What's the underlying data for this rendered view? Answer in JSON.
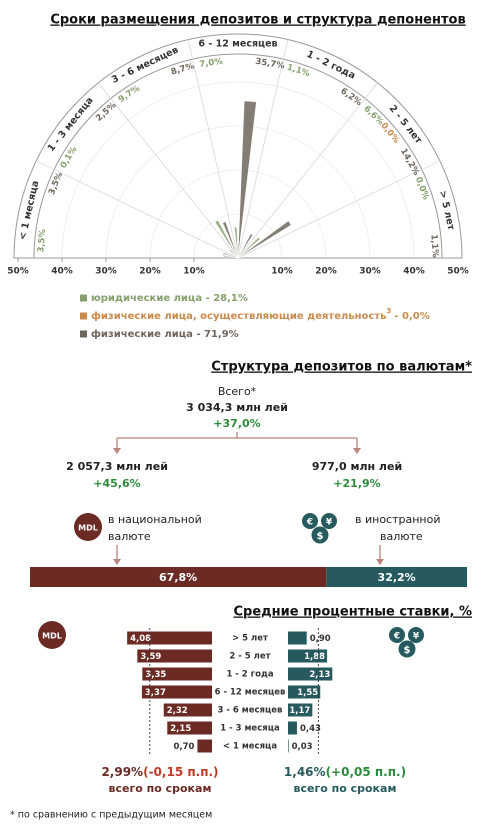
{
  "chart_data": [
    {
      "type": "radial",
      "title": "Сроки размещения депозитов и структура депонентов",
      "categories": [
        "< 1 месяца",
        "1 - 3 месяца",
        "3 - 6 месяцев",
        "6 - 12 месяцев",
        "1 - 2 года",
        "2 - 5 лет",
        "> 5 лет"
      ],
      "series": [
        {
          "name": "юридические лица - 28,1%",
          "color": "#86a06e",
          "values": [
            3.5,
            0.1,
            9.7,
            7.0,
            1.1,
            6.6,
            0.0
          ],
          "value_labels": [
            "3,5%",
            "0,1%",
            "9,7%",
            "7,0%",
            "1,1%",
            "6,6%",
            "0,0%"
          ]
        },
        {
          "name": "физические лица, осуществляющие деятельность",
          "name_note": "3",
          "name_suffix": "- 0,0%",
          "color": "#c98b4e",
          "values": [
            null,
            null,
            null,
            null,
            null,
            0.0,
            null
          ],
          "value_labels": [
            null,
            null,
            null,
            null,
            null,
            "0,0%",
            null
          ]
        },
        {
          "name": "физические лица - 71,9%",
          "color": "#6e665c",
          "values": [
            3.5,
            2.5,
            8.7,
            35.7,
            6.2,
            14.2,
            1.1
          ],
          "value_labels": [
            "3,5%",
            "2,5%",
            "8,7%",
            "35,7%",
            "6,2%",
            "14,2%",
            "1,1%"
          ]
        }
      ],
      "rlim": [
        0,
        50
      ],
      "rticks_left": [
        {
          "value": 50,
          "label": "50%"
        },
        {
          "value": 40,
          "label": "40%"
        },
        {
          "value": 30,
          "label": "30%"
        },
        {
          "value": 20,
          "label": "20%"
        },
        {
          "value": 10,
          "label": "10%"
        }
      ],
      "rticks_right": [
        {
          "value": 10,
          "label": "10%"
        },
        {
          "value": 20,
          "label": "20%"
        },
        {
          "value": 30,
          "label": "30%"
        },
        {
          "value": 40,
          "label": "40%"
        },
        {
          "value": 50,
          "label": "50%"
        }
      ]
    },
    {
      "type": "share_bar",
      "title": "Структура депозитов по валютам*",
      "series": [
        {
          "color": "#6b2a24",
          "values": [
            67.8
          ],
          "value_labels": [
            "67,8%"
          ]
        },
        {
          "color": "#275a5e",
          "values": [
            32.2
          ],
          "value_labels": [
            "32,2%"
          ]
        }
      ]
    },
    {
      "type": "diverging_bar",
      "title": "Средние процентные ставки, %",
      "categories": [
        "> 5 лет",
        "2 - 5 лет",
        "1 - 2 года",
        "6 - 12 месяцев",
        "3 - 6 месяцев",
        "1 - 3 месяца",
        "< 1 месяца"
      ],
      "series": [
        {
          "color": "#6b2a24",
          "values": [
            4.08,
            3.59,
            3.35,
            3.37,
            2.32,
            2.15,
            0.7
          ],
          "value_labels": [
            "4,08",
            "3,59",
            "3,35",
            "3,37",
            "2,32",
            "2,15",
            "0,70"
          ],
          "average": 2.99,
          "average_label": "2,99%",
          "change_label": "(-0,15 п.п.)",
          "change_color": "#c0392b",
          "note": "всего по срокам"
        },
        {
          "color": "#275a5e",
          "values": [
            0.9,
            1.88,
            2.13,
            1.55,
            1.17,
            0.43,
            0.03
          ],
          "value_labels": [
            "0,90",
            "1,88",
            "2,13",
            "1,55",
            "1,17",
            "0,43",
            "0,03"
          ],
          "average": 1.46,
          "average_label": "1,46%",
          "change_label": "(+0,05 п.п.)",
          "change_color": "#2e8b3e",
          "note": "всего по срокам"
        }
      ]
    }
  ],
  "currency_tree": {
    "total": {
      "label": "Всего*",
      "amount": "3 034,3 млн лей",
      "change": "+37,0%"
    },
    "branches": [
      {
        "amount": "2 057,3 млн лей",
        "change": "+45,6%",
        "caption": [
          "в национальной",
          "валюте"
        ]
      },
      {
        "amount": "977,0 млн лей",
        "change": "+21,9%",
        "caption": [
          "в иностранной",
          "валюте"
        ]
      }
    ]
  },
  "mdl_icon": "MDL",
  "currency_icon": [
    "€",
    "$",
    "¥"
  ],
  "footnote": "* по сравнению с предыдущим месяцем"
}
